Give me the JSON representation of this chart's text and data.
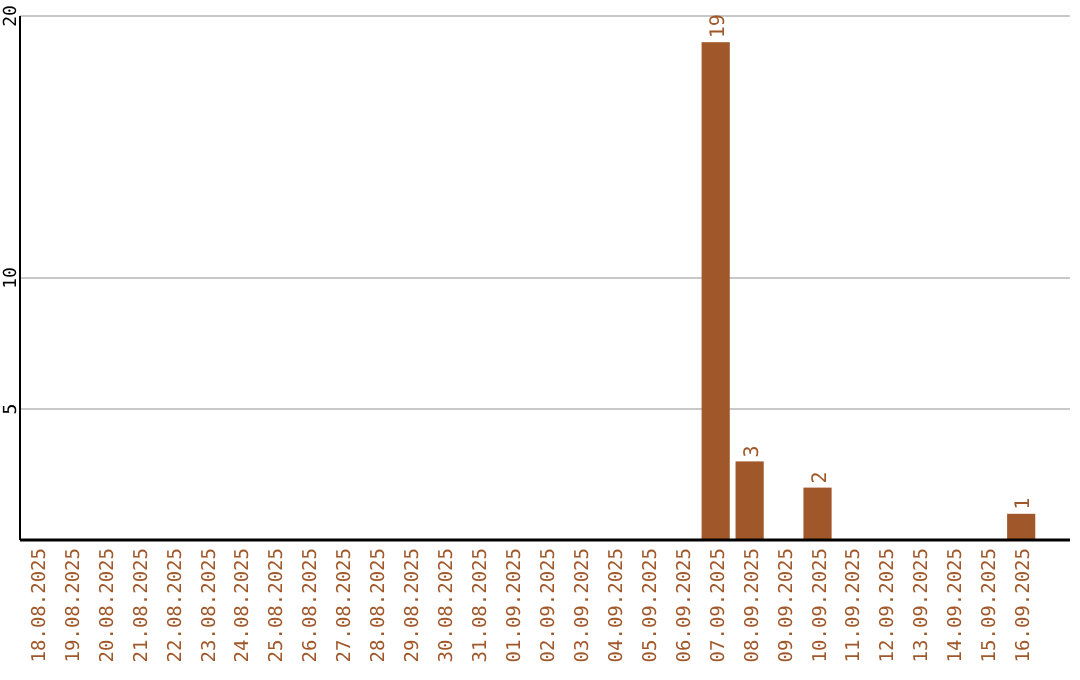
{
  "chart_data": {
    "type": "bar",
    "categories": [
      "18.08.2025",
      "19.08.2025",
      "20.08.2025",
      "21.08.2025",
      "22.08.2025",
      "23.08.2025",
      "24.08.2025",
      "25.08.2025",
      "26.08.2025",
      "27.08.2025",
      "28.08.2025",
      "29.08.2025",
      "30.08.2025",
      "31.08.2025",
      "01.09.2025",
      "02.09.2025",
      "03.09.2025",
      "04.09.2025",
      "05.09.2025",
      "06.09.2025",
      "07.09.2025",
      "08.09.2025",
      "09.09.2025",
      "10.09.2025",
      "11.09.2025",
      "12.09.2025",
      "13.09.2025",
      "14.09.2025",
      "15.09.2025",
      "16.09.2025"
    ],
    "values": [
      0,
      0,
      0,
      0,
      0,
      0,
      0,
      0,
      0,
      0,
      0,
      0,
      0,
      0,
      0,
      0,
      0,
      0,
      0,
      0,
      19,
      3,
      0,
      2,
      0,
      0,
      0,
      0,
      0,
      1
    ],
    "value_labels": [
      null,
      null,
      null,
      null,
      null,
      null,
      null,
      null,
      null,
      null,
      null,
      null,
      null,
      null,
      null,
      null,
      null,
      null,
      null,
      null,
      "19",
      "3",
      null,
      "2",
      null,
      null,
      null,
      null,
      null,
      "1"
    ],
    "color": "#a0582a",
    "ylim": [
      0,
      20
    ],
    "yticks": [
      5,
      10,
      20
    ],
    "grid": "y"
  }
}
